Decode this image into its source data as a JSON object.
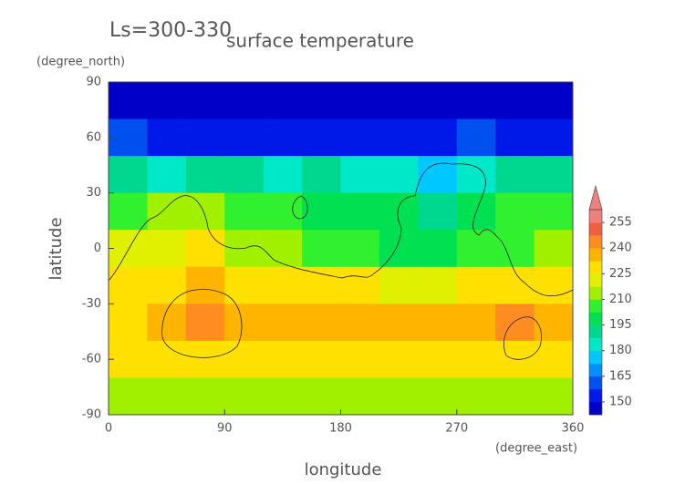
{
  "chart_data": {
    "type": "contour",
    "title": "Ls=300-330",
    "subtitle": "surface temperature",
    "xlabel": "longitude",
    "xunit": "(degree_east)",
    "ylabel": "latitude",
    "yunit": "(degree_north)",
    "xlim": [
      0,
      360
    ],
    "ylim": [
      -90,
      90
    ],
    "xticks": [
      0,
      90,
      180,
      270,
      360
    ],
    "yticks": [
      90,
      60,
      30,
      0,
      -30,
      -60,
      -90
    ],
    "x": [
      15,
      45,
      75,
      105,
      135,
      165,
      195,
      225,
      255,
      285,
      315,
      345
    ],
    "y": [
      80,
      60,
      40,
      20,
      0,
      -20,
      -40,
      -60,
      -80
    ],
    "z": [
      [
        146,
        146,
        146,
        146,
        146,
        146,
        146,
        146,
        146,
        146,
        146,
        146
      ],
      [
        158,
        156,
        155,
        156,
        157,
        156,
        155,
        156,
        157,
        158,
        156,
        157
      ],
      [
        190,
        185,
        192,
        188,
        186,
        188,
        186,
        182,
        178,
        186,
        190,
        192
      ],
      [
        205,
        212,
        214,
        208,
        206,
        202,
        200,
        198,
        194,
        200,
        204,
        206
      ],
      [
        220,
        222,
        226,
        216,
        212,
        208,
        204,
        202,
        200,
        204,
        208,
        214
      ],
      [
        230,
        232,
        234,
        230,
        228,
        226,
        226,
        224,
        222,
        226,
        232,
        232
      ],
      [
        232,
        236,
        242,
        236,
        236,
        238,
        234,
        234,
        234,
        236,
        242,
        236
      ],
      [
        228,
        226,
        228,
        226,
        226,
        228,
        230,
        230,
        228,
        228,
        226,
        228
      ],
      [
        214,
        214,
        212,
        212,
        214,
        214,
        212,
        214,
        214,
        212,
        212,
        210
      ]
    ],
    "colorbar": {
      "clim": [
        142.5,
        262.5
      ],
      "ticks": [
        150,
        165,
        180,
        195,
        210,
        225,
        240,
        255
      ],
      "colors": [
        "#0000c8",
        "#0018e8",
        "#0050f0",
        "#0090ff",
        "#00c8ff",
        "#00e8c8",
        "#00d890",
        "#00e050",
        "#30f030",
        "#a0f000",
        "#e0f000",
        "#ffe000",
        "#ffb400",
        "#ff8c20",
        "#f06040",
        "#f08080"
      ]
    }
  }
}
